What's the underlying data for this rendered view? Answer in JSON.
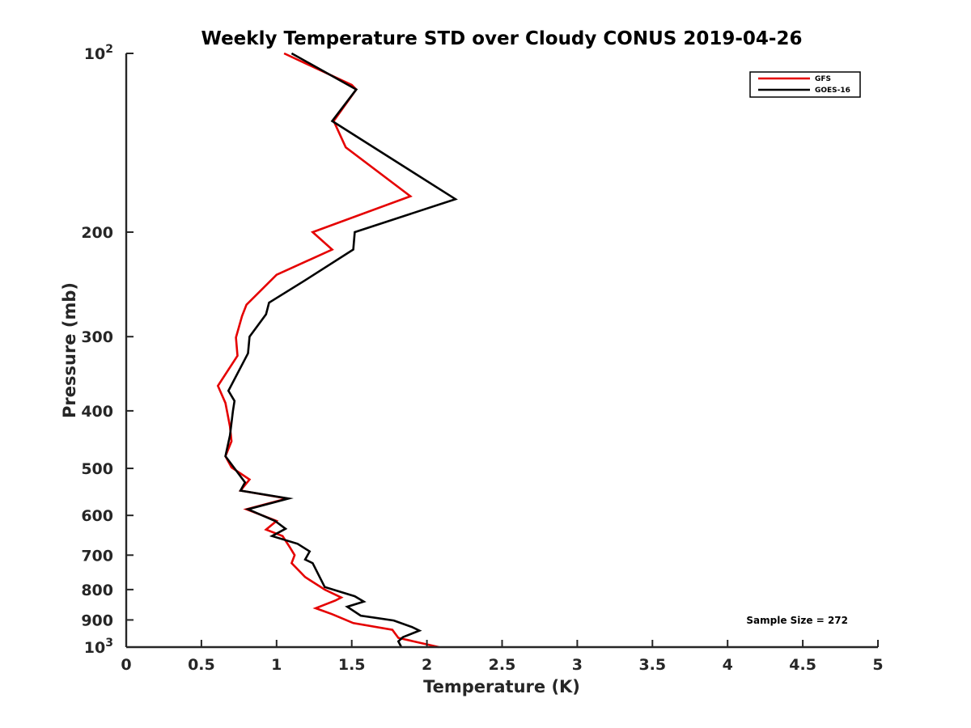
{
  "chart_data": {
    "type": "line",
    "title": "Weekly Temperature STD over Cloudy CONUS 2019-04-26",
    "xlabel": "Temperature (K)",
    "ylabel": "Pressure (mb)",
    "xlim": [
      0,
      5
    ],
    "ylim": [
      100,
      1000
    ],
    "y_scale": "log",
    "y_reversed": true,
    "grid": false,
    "legend_position": "top-right",
    "x_ticks": [
      0,
      0.5,
      1,
      1.5,
      2,
      2.5,
      3,
      3.5,
      4,
      4.5,
      5
    ],
    "x_tick_labels": [
      "0",
      "0.5",
      "1",
      "1.5",
      "2",
      "2.5",
      "3",
      "3.5",
      "4",
      "4.5",
      "5"
    ],
    "y_ticks": [
      100,
      200,
      300,
      400,
      500,
      600,
      700,
      800,
      900,
      1000
    ],
    "y_tick_labels": [
      {
        "base": "10",
        "exp": "2"
      },
      {
        "base": "200"
      },
      {
        "base": "300"
      },
      {
        "base": "400"
      },
      {
        "base": "500"
      },
      {
        "base": "600"
      },
      {
        "base": "700"
      },
      {
        "base": "800"
      },
      {
        "base": "900"
      },
      {
        "base": "10",
        "exp": "3"
      }
    ],
    "annotation": "Sample Size = 272",
    "series": [
      {
        "name": "GFS",
        "color": "#e50000",
        "points": [
          [
            1.05,
            100
          ],
          [
            1.5,
            113
          ],
          [
            1.53,
            115
          ],
          [
            1.38,
            130
          ],
          [
            1.46,
            144
          ],
          [
            1.89,
            174
          ],
          [
            1.24,
            200
          ],
          [
            1.37,
            214
          ],
          [
            1.0,
            236
          ],
          [
            0.8,
            265
          ],
          [
            0.77,
            277
          ],
          [
            0.73,
            301
          ],
          [
            0.74,
            323
          ],
          [
            0.61,
            363
          ],
          [
            0.66,
            388
          ],
          [
            0.69,
            425
          ],
          [
            0.7,
            450
          ],
          [
            0.66,
            477
          ],
          [
            0.7,
            498
          ],
          [
            0.82,
            522
          ],
          [
            0.76,
            545
          ],
          [
            1.07,
            562
          ],
          [
            0.8,
            586
          ],
          [
            1.0,
            613
          ],
          [
            0.93,
            634
          ],
          [
            1.04,
            650
          ],
          [
            1.09,
            680
          ],
          [
            1.12,
            700
          ],
          [
            1.1,
            722
          ],
          [
            1.19,
            762
          ],
          [
            1.32,
            800
          ],
          [
            1.43,
            825
          ],
          [
            1.39,
            835
          ],
          [
            1.26,
            860
          ],
          [
            1.37,
            880
          ],
          [
            1.51,
            911
          ],
          [
            1.77,
            935
          ],
          [
            1.81,
            965
          ],
          [
            2.08,
            1000
          ]
        ]
      },
      {
        "name": "GOES-16",
        "color": "#000000",
        "points": [
          [
            1.1,
            100
          ],
          [
            1.53,
            115
          ],
          [
            1.37,
            130
          ],
          [
            2.19,
            176
          ],
          [
            1.52,
            200
          ],
          [
            1.51,
            214
          ],
          [
            1.18,
            242
          ],
          [
            0.95,
            263
          ],
          [
            0.93,
            275
          ],
          [
            0.82,
            300
          ],
          [
            0.81,
            320
          ],
          [
            0.68,
            370
          ],
          [
            0.72,
            385
          ],
          [
            0.71,
            400
          ],
          [
            0.69,
            440
          ],
          [
            0.66,
            477
          ],
          [
            0.79,
            528
          ],
          [
            0.76,
            545
          ],
          [
            1.08,
            562
          ],
          [
            0.81,
            586
          ],
          [
            0.99,
            613
          ],
          [
            1.06,
            632
          ],
          [
            0.97,
            650
          ],
          [
            1.14,
            670
          ],
          [
            1.22,
            690
          ],
          [
            1.19,
            712
          ],
          [
            1.24,
            722
          ],
          [
            1.32,
            792
          ],
          [
            1.52,
            821
          ],
          [
            1.58,
            838
          ],
          [
            1.47,
            855
          ],
          [
            1.56,
            885
          ],
          [
            1.78,
            902
          ],
          [
            1.9,
            925
          ],
          [
            1.95,
            938
          ],
          [
            1.84,
            962
          ],
          [
            1.81,
            978
          ],
          [
            1.83,
            1000
          ]
        ]
      }
    ]
  }
}
